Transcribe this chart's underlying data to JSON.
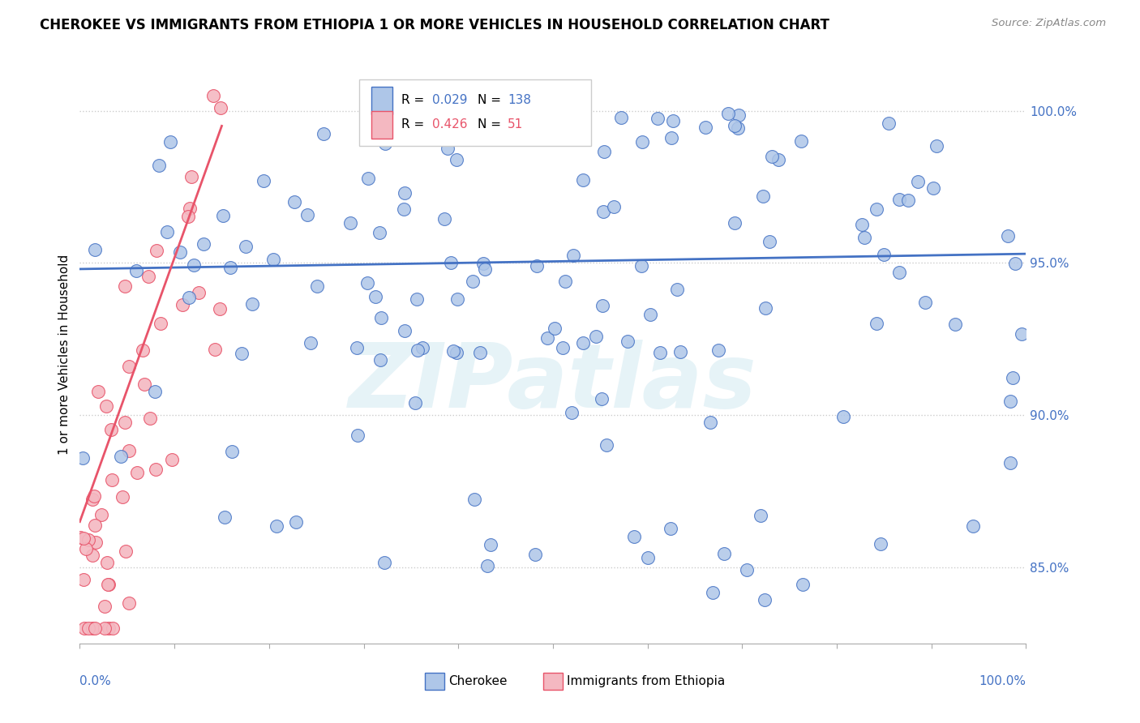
{
  "title": "CHEROKEE VS IMMIGRANTS FROM ETHIOPIA 1 OR MORE VEHICLES IN HOUSEHOLD CORRELATION CHART",
  "source": "Source: ZipAtlas.com",
  "ylabel": "1 or more Vehicles in Household",
  "watermark": "ZIPatlas",
  "legend_cherokee": "Cherokee",
  "legend_ethiopia": "Immigrants from Ethiopia",
  "r_cherokee": 0.029,
  "n_cherokee": 138,
  "r_ethiopia": 0.426,
  "n_ethiopia": 51,
  "ytick_values": [
    85.0,
    90.0,
    95.0,
    100.0
  ],
  "xlim": [
    0.0,
    100.0
  ],
  "ylim": [
    82.5,
    101.5
  ],
  "color_cherokee": "#aec6e8",
  "color_cherokee_line": "#4472c4",
  "color_ethiopia": "#f4b8c1",
  "color_ethiopia_line": "#e8546a",
  "background": "#ffffff"
}
